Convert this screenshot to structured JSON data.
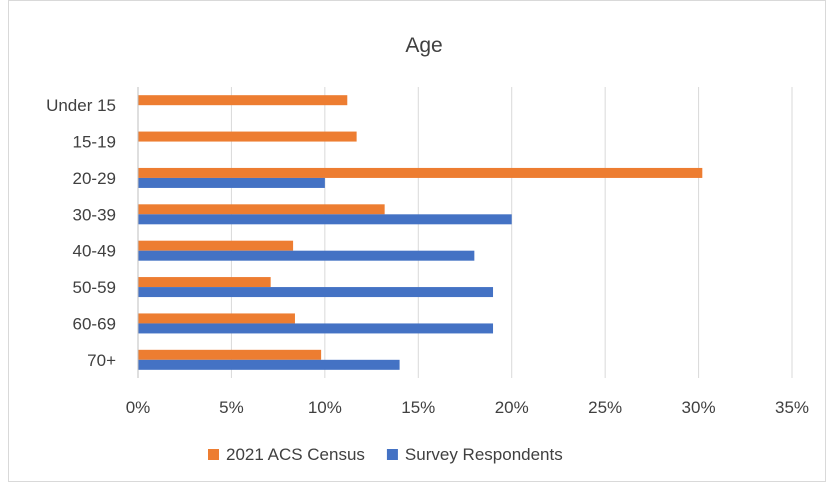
{
  "chart_data": {
    "type": "bar",
    "orientation": "horizontal",
    "title": "Age",
    "xlabel": "",
    "ylabel": "",
    "categories": [
      "Under 15",
      "15-19",
      "20-29",
      "30-39",
      "40-49",
      "50-59",
      "60-69",
      "70+"
    ],
    "series": [
      {
        "name": "2021 ACS Census",
        "color": "#ED7D31",
        "values": [
          11.2,
          11.7,
          30.2,
          13.2,
          8.3,
          7.1,
          8.4,
          9.8
        ]
      },
      {
        "name": "Survey Respondents",
        "color": "#4472C4",
        "values": [
          0,
          0,
          10.0,
          20.0,
          18.0,
          19.0,
          19.0,
          14.0
        ]
      }
    ],
    "xlim": [
      0,
      35
    ],
    "xticks": [
      0,
      5,
      10,
      15,
      20,
      25,
      30,
      35
    ],
    "xtick_labels": [
      "0%",
      "5%",
      "10%",
      "15%",
      "20%",
      "25%",
      "30%",
      "35%"
    ],
    "grid": true,
    "legend_position": "bottom"
  }
}
